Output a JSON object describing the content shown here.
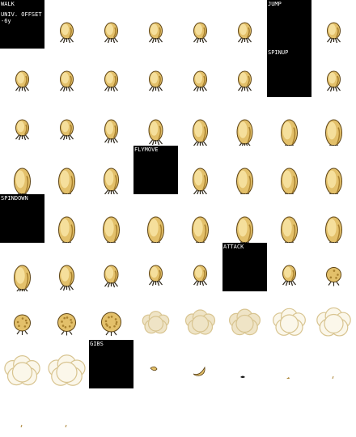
{
  "labels": {
    "walk": "WALK",
    "offset_title": "UNIV. OFFSET",
    "offset_value": "-6y",
    "jump": "JUMP",
    "spinup": "SPINUP",
    "flymove": "FLYMOVE",
    "spindown": "SPINDOWN",
    "attack": "ATTACK",
    "gibs": "GIBS"
  },
  "colors": {
    "body_light": "#f5df9c",
    "body_mid": "#e3c06a",
    "body_dark": "#a8802e",
    "outline": "#5e4414",
    "legs": "#2a2418",
    "cloud": "#efe4c6",
    "cloud_shade": "#d8c490",
    "label_bg": "#000000",
    "label_text": "#ffffff"
  }
}
